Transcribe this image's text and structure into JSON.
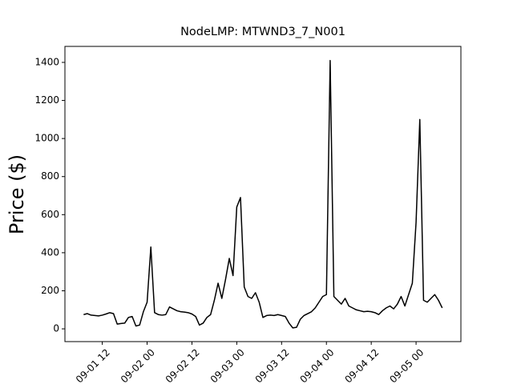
{
  "chart_data": {
    "type": "line",
    "title": "NodeLMP: MTWND3_7_N001",
    "y_label": "Price ($)",
    "x": [
      "09-01 07",
      "09-01 08",
      "09-01 09",
      "09-01 10",
      "09-01 11",
      "09-01 12",
      "09-01 13",
      "09-01 14",
      "09-01 15",
      "09-01 16",
      "09-01 17",
      "09-01 18",
      "09-01 19",
      "09-01 20",
      "09-01 21",
      "09-01 22",
      "09-01 23",
      "09-02 00",
      "09-02 01",
      "09-02 02",
      "09-02 03",
      "09-02 04",
      "09-02 05",
      "09-02 06",
      "09-02 07",
      "09-02 08",
      "09-02 09",
      "09-02 10",
      "09-02 11",
      "09-02 12",
      "09-02 13",
      "09-02 14",
      "09-02 15",
      "09-02 16",
      "09-02 17",
      "09-02 18",
      "09-02 19",
      "09-02 20",
      "09-02 21",
      "09-02 22",
      "09-02 23",
      "09-03 00",
      "09-03 01",
      "09-03 02",
      "09-03 03",
      "09-03 04",
      "09-03 05",
      "09-03 06",
      "09-03 07",
      "09-03 08",
      "09-03 09",
      "09-03 10",
      "09-03 11",
      "09-03 12",
      "09-03 13",
      "09-03 14",
      "09-03 15",
      "09-03 16",
      "09-03 17",
      "09-03 18",
      "09-03 19",
      "09-03 20",
      "09-03 21",
      "09-03 22",
      "09-03 23",
      "09-04 00",
      "09-04 01",
      "09-04 02",
      "09-04 03",
      "09-04 04",
      "09-04 05",
      "09-04 06",
      "09-04 07",
      "09-04 08",
      "09-04 09",
      "09-04 10",
      "09-04 11",
      "09-04 12",
      "09-04 13",
      "09-04 14",
      "09-04 15",
      "09-04 16",
      "09-04 17",
      "09-04 18",
      "09-04 19",
      "09-04 20",
      "09-04 21",
      "09-04 22",
      "09-04 23",
      "09-05 00",
      "09-05 01",
      "09-05 02",
      "09-05 03",
      "09-05 04",
      "09-05 05",
      "09-05 06",
      "09-05 07"
    ],
    "series": [
      {
        "name": "NodeLMP",
        "color": "#000000",
        "values": [
          75,
          80,
          72,
          70,
          68,
          72,
          78,
          85,
          80,
          25,
          28,
          30,
          60,
          65,
          15,
          20,
          90,
          140,
          430,
          85,
          75,
          72,
          75,
          115,
          105,
          95,
          90,
          88,
          85,
          78,
          65,
          20,
          30,
          60,
          75,
          150,
          240,
          160,
          260,
          370,
          280,
          640,
          690,
          220,
          170,
          160,
          190,
          140,
          60,
          70,
          72,
          70,
          75,
          70,
          65,
          30,
          5,
          8,
          50,
          70,
          80,
          90,
          110,
          140,
          170,
          180,
          1410,
          170,
          150,
          130,
          160,
          120,
          110,
          100,
          95,
          90,
          92,
          90,
          85,
          75,
          95,
          110,
          120,
          105,
          130,
          170,
          120,
          180,
          240,
          560,
          1100,
          150,
          140,
          160,
          180,
          150,
          110
        ]
      }
    ],
    "xlim": [
      "09-01 02",
      "09-05 12"
    ],
    "xticks": [
      "09-01 12",
      "09-02 00",
      "09-02 12",
      "09-03 00",
      "09-03 12",
      "09-04 00",
      "09-04 12",
      "09-05 00"
    ],
    "ylim": [
      -67,
      1484
    ],
    "yticks": [
      0,
      200,
      400,
      600,
      800,
      1000,
      1200,
      1400
    ]
  }
}
